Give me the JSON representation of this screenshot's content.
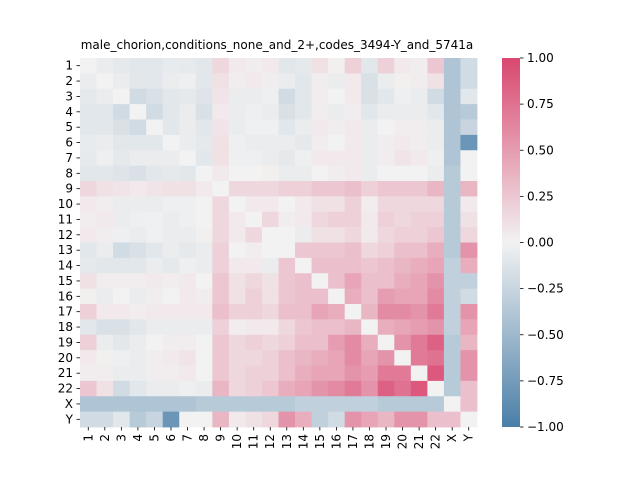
{
  "chart_data": {
    "type": "heatmap",
    "title": "male_chorion,conditions_none_and_2+,codes_3494-Y_and_5741a",
    "row_labels": [
      "1",
      "2",
      "3",
      "4",
      "5",
      "6",
      "7",
      "8",
      "9",
      "10",
      "11",
      "12",
      "13",
      "14",
      "15",
      "16",
      "17",
      "18",
      "19",
      "20",
      "21",
      "22",
      "X",
      "Y"
    ],
    "col_labels": [
      "1",
      "2",
      "3",
      "4",
      "5",
      "6",
      "7",
      "8",
      "9",
      "10",
      "11",
      "12",
      "13",
      "14",
      "15",
      "16",
      "17",
      "18",
      "19",
      "20",
      "21",
      "22",
      "X",
      "Y"
    ],
    "colorbar": {
      "min": -1.0,
      "max": 1.0,
      "ticks": [
        "1.00",
        "0.75",
        "0.50",
        "0.25",
        "0.00",
        "−0.25",
        "−0.50",
        "−0.75",
        "−1.00"
      ],
      "tick_values": [
        1.0,
        0.75,
        0.5,
        0.25,
        0.0,
        -0.25,
        -0.5,
        -0.75,
        -1.0
      ]
    },
    "colormap": {
      "neg": "#4a7fa8",
      "mid": "#f2f2f2",
      "pos": "#d9476f"
    },
    "values": [
      [
        0.0,
        -0.05,
        -0.08,
        -0.1,
        -0.1,
        -0.06,
        -0.07,
        -0.1,
        0.15,
        0.05,
        0.03,
        0.05,
        -0.1,
        -0.08,
        0.1,
        0.02,
        0.2,
        -0.1,
        0.2,
        0.05,
        0.03,
        0.25,
        -0.4,
        -0.2
      ],
      [
        -0.05,
        0.0,
        -0.05,
        -0.1,
        -0.1,
        -0.05,
        -0.03,
        -0.1,
        0.1,
        0.03,
        0.05,
        0.03,
        -0.05,
        -0.1,
        0.03,
        -0.05,
        0.05,
        -0.15,
        -0.05,
        0.02,
        0.03,
        0.1,
        -0.4,
        -0.2
      ],
      [
        -0.08,
        -0.05,
        0.0,
        -0.2,
        -0.15,
        -0.1,
        -0.08,
        -0.12,
        0.08,
        -0.05,
        -0.05,
        -0.03,
        -0.2,
        -0.1,
        0.03,
        0.0,
        0.05,
        -0.15,
        -0.1,
        -0.03,
        -0.05,
        -0.2,
        -0.4,
        -0.1
      ],
      [
        -0.1,
        -0.1,
        -0.2,
        0.0,
        -0.2,
        -0.1,
        -0.05,
        -0.15,
        0.05,
        -0.05,
        -0.03,
        -0.05,
        -0.15,
        -0.1,
        0.03,
        -0.05,
        0.03,
        -0.1,
        -0.05,
        -0.05,
        -0.05,
        -0.1,
        -0.4,
        -0.35
      ],
      [
        -0.1,
        -0.1,
        -0.15,
        -0.2,
        0.0,
        -0.1,
        -0.05,
        -0.1,
        0.08,
        -0.05,
        -0.02,
        -0.02,
        -0.1,
        -0.05,
        0.05,
        0.03,
        0.05,
        -0.05,
        0.0,
        0.03,
        0.03,
        -0.05,
        -0.4,
        -0.25
      ],
      [
        -0.06,
        -0.05,
        -0.1,
        -0.1,
        -0.1,
        0.0,
        -0.05,
        -0.08,
        0.1,
        -0.03,
        -0.05,
        -0.05,
        -0.05,
        -0.08,
        0.03,
        0.0,
        0.05,
        -0.05,
        0.03,
        0.05,
        0.03,
        -0.05,
        -0.4,
        -0.8
      ],
      [
        -0.07,
        -0.03,
        -0.08,
        -0.05,
        -0.05,
        -0.05,
        0.0,
        -0.1,
        0.1,
        -0.03,
        -0.03,
        -0.05,
        -0.08,
        -0.03,
        0.05,
        0.05,
        0.05,
        -0.05,
        0.03,
        0.08,
        0.05,
        -0.03,
        -0.4,
        0.0
      ],
      [
        -0.1,
        -0.1,
        -0.12,
        -0.15,
        -0.1,
        -0.08,
        -0.1,
        0.0,
        0.05,
        0.0,
        0.0,
        0.02,
        -0.05,
        -0.05,
        0.0,
        0.03,
        0.05,
        -0.05,
        0.0,
        0.0,
        0.0,
        -0.05,
        -0.35,
        0.0
      ],
      [
        0.15,
        0.1,
        0.08,
        0.05,
        0.08,
        0.1,
        0.1,
        0.05,
        0.0,
        0.15,
        0.15,
        0.15,
        0.2,
        0.2,
        0.25,
        0.25,
        0.3,
        0.2,
        0.25,
        0.25,
        0.25,
        0.35,
        -0.35,
        0.35
      ],
      [
        0.05,
        0.03,
        -0.05,
        -0.05,
        -0.05,
        -0.03,
        -0.03,
        0.0,
        0.15,
        0.0,
        0.05,
        0.05,
        0.0,
        0.05,
        0.1,
        0.1,
        0.2,
        0.03,
        0.15,
        0.15,
        0.15,
        0.15,
        -0.35,
        0.05
      ],
      [
        0.03,
        0.05,
        -0.05,
        -0.03,
        -0.02,
        -0.05,
        -0.03,
        0.0,
        0.15,
        0.05,
        0.0,
        0.15,
        0.03,
        0.05,
        0.15,
        0.2,
        0.2,
        0.05,
        0.2,
        0.15,
        0.2,
        0.2,
        -0.35,
        0.1
      ],
      [
        0.05,
        0.03,
        -0.03,
        -0.05,
        -0.02,
        -0.05,
        -0.05,
        0.02,
        0.15,
        0.05,
        0.15,
        0.0,
        0.0,
        -0.05,
        0.1,
        0.1,
        0.15,
        0.05,
        0.15,
        0.2,
        0.2,
        0.25,
        -0.35,
        0.15
      ],
      [
        -0.1,
        -0.05,
        -0.2,
        -0.15,
        -0.1,
        -0.05,
        -0.08,
        -0.05,
        0.2,
        0.0,
        0.03,
        0.0,
        0.0,
        0.25,
        0.25,
        0.25,
        0.3,
        0.15,
        0.2,
        0.3,
        0.3,
        0.4,
        -0.35,
        0.55
      ],
      [
        -0.08,
        -0.1,
        -0.1,
        -0.1,
        -0.05,
        -0.08,
        -0.03,
        -0.05,
        0.2,
        0.05,
        0.05,
        -0.05,
        0.25,
        0.0,
        0.3,
        0.3,
        0.3,
        0.25,
        0.3,
        0.35,
        0.4,
        0.45,
        -0.3,
        0.4
      ],
      [
        0.1,
        0.03,
        0.03,
        0.03,
        0.05,
        0.03,
        0.05,
        0.0,
        0.25,
        0.1,
        0.15,
        0.1,
        0.25,
        0.3,
        0.0,
        0.3,
        0.45,
        0.3,
        0.3,
        0.4,
        0.45,
        0.55,
        -0.3,
        -0.3
      ],
      [
        0.02,
        -0.05,
        0.0,
        -0.05,
        0.03,
        0.0,
        0.05,
        0.03,
        0.25,
        0.1,
        0.2,
        0.1,
        0.25,
        0.3,
        0.3,
        0.0,
        0.4,
        0.3,
        0.5,
        0.45,
        0.45,
        0.6,
        -0.3,
        -0.2
      ],
      [
        0.2,
        0.05,
        0.05,
        0.03,
        0.05,
        0.05,
        0.05,
        0.05,
        0.3,
        0.2,
        0.2,
        0.15,
        0.3,
        0.3,
        0.45,
        0.4,
        0.0,
        0.35,
        0.6,
        0.6,
        0.55,
        0.7,
        -0.3,
        0.55
      ],
      [
        -0.1,
        -0.15,
        -0.15,
        -0.1,
        -0.05,
        -0.05,
        -0.05,
        -0.05,
        0.2,
        0.03,
        0.05,
        0.05,
        0.15,
        0.25,
        0.3,
        0.3,
        0.35,
        0.0,
        0.4,
        0.45,
        0.5,
        0.55,
        -0.3,
        0.45
      ],
      [
        0.2,
        -0.05,
        -0.1,
        -0.05,
        0.0,
        0.03,
        0.03,
        0.0,
        0.25,
        0.15,
        0.2,
        0.15,
        0.2,
        0.3,
        0.3,
        0.5,
        0.6,
        0.4,
        0.0,
        0.55,
        0.7,
        0.85,
        -0.35,
        0.35
      ],
      [
        0.05,
        0.02,
        -0.03,
        -0.05,
        0.03,
        0.05,
        0.08,
        0.0,
        0.25,
        0.15,
        0.15,
        0.2,
        0.3,
        0.35,
        0.4,
        0.45,
        0.6,
        0.45,
        0.55,
        0.0,
        0.7,
        0.75,
        -0.35,
        0.55
      ],
      [
        0.03,
        0.03,
        -0.05,
        -0.05,
        0.03,
        0.03,
        0.05,
        0.0,
        0.25,
        0.15,
        0.2,
        0.2,
        0.3,
        0.4,
        0.45,
        0.45,
        0.55,
        0.5,
        0.7,
        0.7,
        0.0,
        0.9,
        -0.35,
        0.55
      ],
      [
        0.25,
        0.1,
        -0.2,
        -0.1,
        -0.05,
        -0.05,
        -0.03,
        -0.05,
        0.35,
        0.15,
        0.2,
        0.25,
        0.4,
        0.45,
        0.55,
        0.6,
        0.7,
        0.55,
        0.85,
        0.75,
        0.9,
        0.0,
        -0.35,
        0.3
      ],
      [
        -0.4,
        -0.4,
        -0.4,
        -0.4,
        -0.4,
        -0.4,
        -0.4,
        -0.35,
        -0.35,
        -0.35,
        -0.35,
        -0.35,
        -0.35,
        -0.3,
        -0.3,
        -0.3,
        -0.3,
        -0.3,
        -0.35,
        -0.35,
        -0.35,
        -0.35,
        0.0,
        0.3
      ],
      [
        -0.2,
        -0.2,
        -0.1,
        -0.35,
        -0.25,
        -0.8,
        0.0,
        0.0,
        0.35,
        0.05,
        0.1,
        0.15,
        0.55,
        0.4,
        -0.3,
        -0.2,
        0.55,
        0.45,
        0.35,
        0.55,
        0.55,
        0.3,
        0.3,
        0.0
      ]
    ]
  }
}
